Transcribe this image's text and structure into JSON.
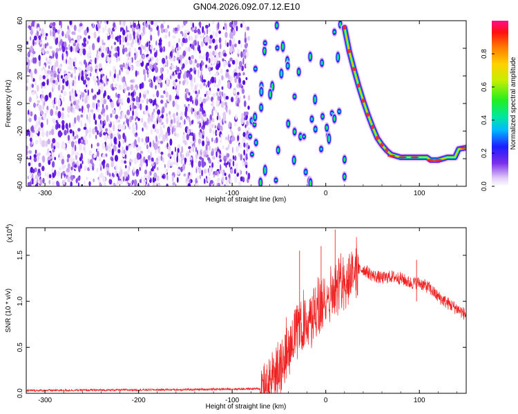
{
  "title": "GN04.2026.092.07.12.E10",
  "chart_data": [
    {
      "type": "heatmap",
      "name": "spectrogram",
      "xlabel": "Height of straight line (km)",
      "ylabel": "Frequency (Hz)",
      "xlim": [
        -320,
        150
      ],
      "ylim": [
        -60,
        60
      ],
      "xticks": [
        -300,
        -200,
        -100,
        0,
        100
      ],
      "yticks": [
        -60,
        -40,
        -20,
        0,
        20,
        40,
        60
      ],
      "noise_region_x": [
        -320,
        -82
      ],
      "track": {
        "curve_x": [
          20,
          25,
          30,
          35,
          40,
          45,
          50,
          55,
          60,
          65,
          70,
          80,
          90,
          100,
          108,
          112,
          120,
          130,
          138,
          142,
          150
        ],
        "curve_y": [
          55,
          38,
          25,
          13,
          2,
          -8,
          -17,
          -25,
          -30,
          -34,
          -37,
          -39,
          -39,
          -39,
          -39,
          -41,
          -41,
          -39,
          -39,
          -33,
          -32
        ]
      },
      "colorbar": {
        "label": "Normalized spectral amplitude",
        "ticks": [
          0.0,
          0.2,
          0.4,
          0.6,
          0.8
        ],
        "tick_labels": [
          "0.0",
          "0.2",
          "0.4",
          "0.6",
          "0.8"
        ],
        "range": [
          0,
          1
        ]
      }
    },
    {
      "type": "line",
      "name": "snr",
      "xlabel": "Height of straight line (km)",
      "ylabel": "SNR (10 * v/v)",
      "yscale_label": "(x10",
      "yscale_exp": "4",
      "yscale_close": ")",
      "xlim": [
        -320,
        150
      ],
      "ylim": [
        0,
        1.8
      ],
      "xticks": [
        -300,
        -200,
        -100,
        0,
        100
      ],
      "yticks": [
        0.0,
        0.5,
        1.0,
        1.5
      ],
      "ytick_labels": [
        "0.0",
        "0.5",
        "1.0",
        "1.5"
      ],
      "series_color": "#ee2222",
      "envelope": {
        "x": [
          -320,
          -150,
          -70,
          -60,
          -50,
          -40,
          -30,
          -20,
          -10,
          0,
          10,
          20,
          30,
          40,
          50,
          60,
          70,
          80,
          90,
          100,
          110,
          120,
          130,
          140,
          150
        ],
        "y": [
          0.03,
          0.04,
          0.05,
          0.15,
          0.3,
          0.55,
          0.7,
          0.8,
          0.9,
          1.05,
          1.15,
          1.25,
          1.33,
          1.35,
          1.28,
          1.25,
          1.27,
          1.25,
          1.2,
          1.2,
          1.15,
          1.05,
          0.98,
          0.92,
          0.85
        ]
      },
      "spikes": [
        {
          "x": -28,
          "y": 1.55
        },
        {
          "x": -5,
          "y": 1.6
        },
        {
          "x": 10,
          "y": 1.78
        },
        {
          "x": 97,
          "y": 1.45
        }
      ]
    }
  ]
}
